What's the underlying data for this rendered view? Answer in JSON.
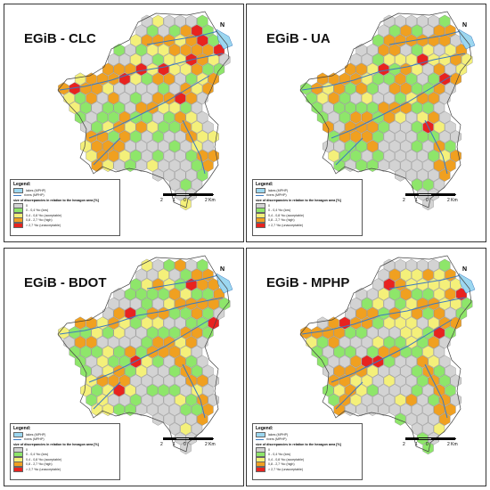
{
  "panels": [
    {
      "title": "EGiB - CLC",
      "seed": 11
    },
    {
      "title": "EGiB - UA",
      "seed": 27
    },
    {
      "title": "EGiB - BDOT",
      "seed": 43
    },
    {
      "title": "EGiB - MPHP",
      "seed": 59
    }
  ],
  "legend": {
    "title": "Legend:",
    "lines": [
      {
        "label": "lakes (MPHP)"
      },
      {
        "label": "rivers (MPHP)"
      }
    ],
    "subtitle": "size of discrepancies in relation to the hexagon area [%]",
    "classes": [
      {
        "label": "0",
        "color": "#d3d3d3"
      },
      {
        "label": "0 - 0,4 %o (low)",
        "color": "#8ee66a"
      },
      {
        "label": "0,4 - 0,8 %o (acceptable)",
        "color": "#f4f07a"
      },
      {
        "label": "0,8 - 2,7 %o (high)",
        "color": "#f0a020"
      },
      {
        "label": "> 2,7 %o (unacceptable)",
        "color": "#e8231f"
      }
    ]
  },
  "scale": {
    "labels": [
      "2",
      "1",
      "0",
      "2 Km"
    ]
  },
  "north": "N",
  "colors": {
    "lake": "#9cd7f0",
    "river": "#3c7ac0"
  }
}
